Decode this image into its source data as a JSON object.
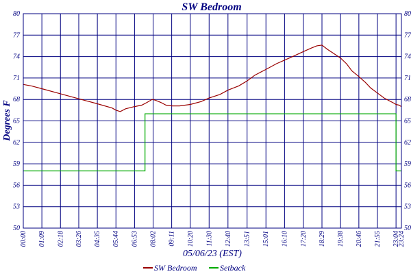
{
  "chart_data": {
    "type": "line",
    "title": "SW Bedroom",
    "xlabel": "05/06/23 (EST)",
    "ylabel": "Degrees F",
    "ylim": [
      50,
      80
    ],
    "yticks": [
      50,
      53,
      56,
      59,
      62,
      65,
      68,
      71,
      74,
      77,
      80
    ],
    "ytick_labels": [
      "50",
      "53",
      "56",
      "59",
      "62",
      "65",
      "68",
      "71",
      "74",
      "77",
      "80"
    ],
    "xlim_minutes": [
      0,
      1404
    ],
    "xtick_labels": [
      "00:00",
      "01:09",
      "02:18",
      "03:26",
      "04:35",
      "05:44",
      "06:53",
      "08:02",
      "09:11",
      "10:20",
      "11:30",
      "12:40",
      "13:51",
      "15:01",
      "16:10",
      "17:20",
      "18:29",
      "19:38",
      "20:46",
      "21:55",
      "23:04",
      "23:24"
    ],
    "xtick_minutes": [
      0,
      69,
      138,
      206,
      275,
      344,
      413,
      482,
      551,
      620,
      690,
      760,
      831,
      901,
      970,
      1040,
      1109,
      1178,
      1246,
      1315,
      1384,
      1404
    ],
    "grid": true,
    "legend_position": "bottom",
    "series": [
      {
        "name": "SW Bedroom",
        "color": "#990000",
        "x": [
          0,
          30,
          69,
          138,
          206,
          275,
          330,
          344,
          360,
          380,
          413,
          440,
          460,
          478,
          490,
          510,
          530,
          551,
          580,
          620,
          660,
          690,
          730,
          760,
          800,
          831,
          860,
          901,
          940,
          970,
          1000,
          1040,
          1070,
          1090,
          1109,
          1130,
          1150,
          1178,
          1200,
          1220,
          1246,
          1270,
          1290,
          1315,
          1340,
          1360,
          1375,
          1384,
          1395,
          1404
        ],
        "y": [
          70.1,
          69.9,
          69.5,
          68.8,
          68.1,
          67.4,
          66.8,
          66.5,
          66.3,
          66.7,
          67.0,
          67.2,
          67.6,
          68.0,
          67.9,
          67.6,
          67.2,
          67.1,
          67.1,
          67.3,
          67.7,
          68.2,
          68.7,
          69.3,
          69.9,
          70.6,
          71.4,
          72.2,
          73.0,
          73.5,
          74.0,
          74.7,
          75.2,
          75.5,
          75.6,
          75.0,
          74.5,
          73.8,
          73.0,
          72.0,
          71.2,
          70.4,
          69.6,
          68.9,
          68.2,
          67.8,
          67.5,
          67.3,
          67.2,
          67.0
        ]
      },
      {
        "name": "Setback",
        "color": "#00aa00",
        "x": [
          0,
          438,
          438,
          452,
          452,
          1384,
          1384,
          1404
        ],
        "y": [
          58.0,
          58.0,
          58.0,
          58.0,
          66.0,
          66.0,
          58.0,
          58.0
        ]
      }
    ]
  }
}
